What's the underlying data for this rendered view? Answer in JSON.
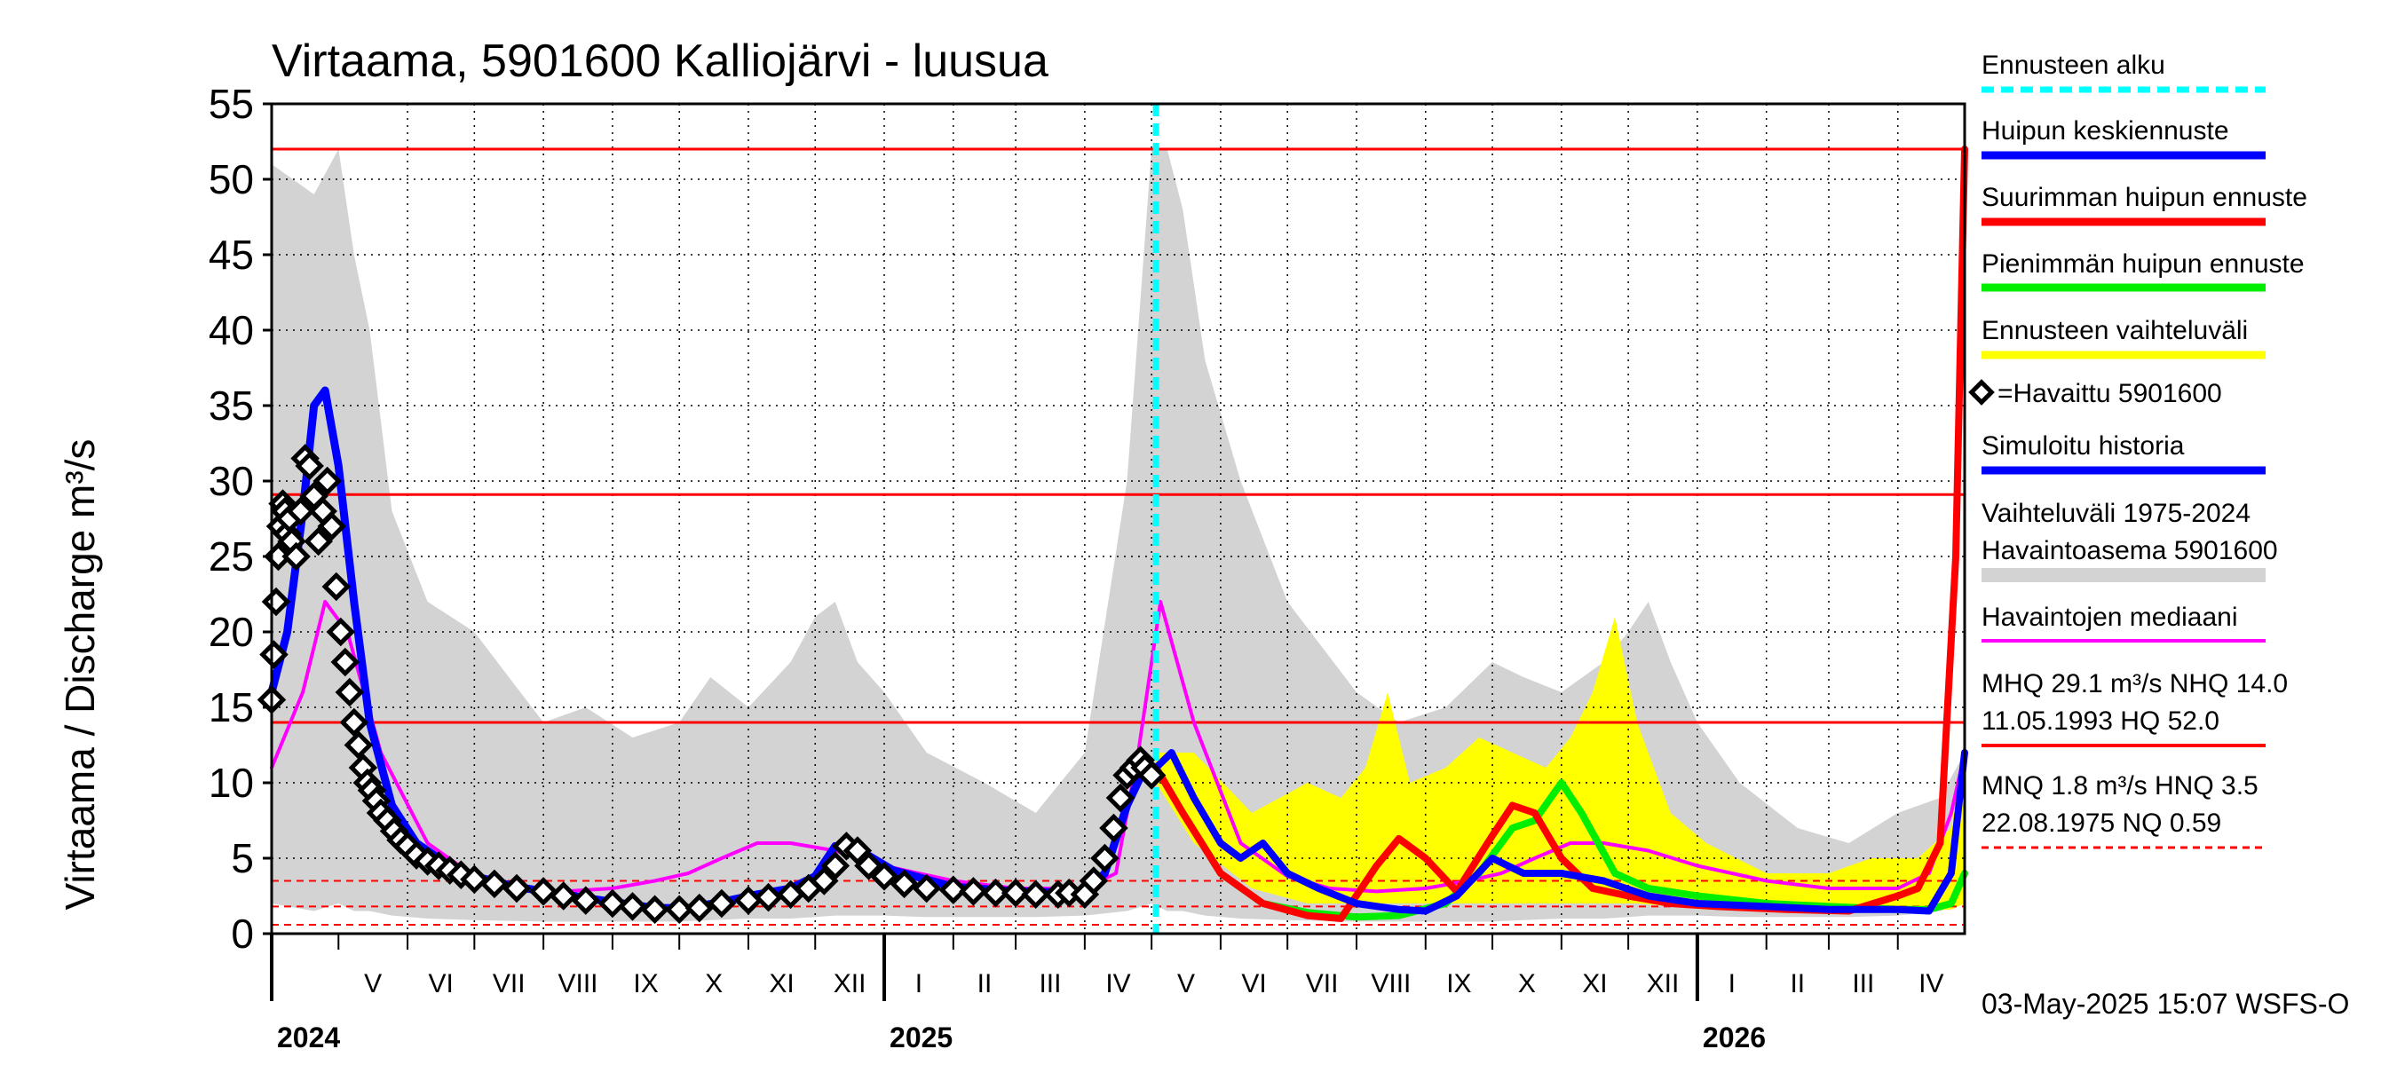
{
  "chart_data": {
    "type": "line",
    "title": "Virtaama, 5901600 Kalliojärvi - luusua",
    "ylabel": "Virtaama / Discharge     m³/s",
    "ylim": [
      0,
      55
    ],
    "yticks": [
      0,
      5,
      10,
      15,
      20,
      25,
      30,
      35,
      40,
      45,
      50,
      55
    ],
    "grid": true,
    "x_range": [
      "2024-04-01",
      "2026-05-01"
    ],
    "months": [
      {
        "label": "V",
        "start": "2024-05-01",
        "end": "2024-06-01"
      },
      {
        "label": "VI",
        "start": "2024-06-01",
        "end": "2024-07-01"
      },
      {
        "label": "VII",
        "start": "2024-07-01",
        "end": "2024-08-01"
      },
      {
        "label": "VIII",
        "start": "2024-08-01",
        "end": "2024-09-01"
      },
      {
        "label": "IX",
        "start": "2024-09-01",
        "end": "2024-10-01"
      },
      {
        "label": "X",
        "start": "2024-10-01",
        "end": "2024-11-01"
      },
      {
        "label": "XI",
        "start": "2024-11-01",
        "end": "2024-12-01"
      },
      {
        "label": "XII",
        "start": "2024-12-01",
        "end": "2025-01-01"
      },
      {
        "label": "I",
        "start": "2025-01-01",
        "end": "2025-02-01"
      },
      {
        "label": "II",
        "start": "2025-02-01",
        "end": "2025-03-01"
      },
      {
        "label": "III",
        "start": "2025-03-01",
        "end": "2025-04-01"
      },
      {
        "label": "IV",
        "start": "2025-04-01",
        "end": "2025-05-01"
      },
      {
        "label": "V",
        "start": "2025-05-01",
        "end": "2025-06-01"
      },
      {
        "label": "VI",
        "start": "2025-06-01",
        "end": "2025-07-01"
      },
      {
        "label": "VII",
        "start": "2025-07-01",
        "end": "2025-08-01"
      },
      {
        "label": "VIII",
        "start": "2025-08-01",
        "end": "2025-09-01"
      },
      {
        "label": "IX",
        "start": "2025-09-01",
        "end": "2025-10-01"
      },
      {
        "label": "X",
        "start": "2025-10-01",
        "end": "2025-11-01"
      },
      {
        "label": "XI",
        "start": "2025-11-01",
        "end": "2025-12-01"
      },
      {
        "label": "XII",
        "start": "2025-12-01",
        "end": "2026-01-01"
      },
      {
        "label": "I",
        "start": "2026-01-01",
        "end": "2026-02-01"
      },
      {
        "label": "II",
        "start": "2026-02-01",
        "end": "2026-03-01"
      },
      {
        "label": "III",
        "start": "2026-03-01",
        "end": "2026-04-01"
      },
      {
        "label": "IV",
        "start": "2026-04-01",
        "end": "2026-05-01"
      }
    ],
    "years": [
      {
        "label": "2024",
        "start": "2024-04-01"
      },
      {
        "label": "2025",
        "start": "2025-01-01"
      },
      {
        "label": "2026",
        "start": "2026-01-01"
      }
    ],
    "forecast_start": "2025-05-03",
    "reference_lines": [
      {
        "name": "HQ",
        "value": 52.0,
        "style": "solid"
      },
      {
        "name": "MHQ",
        "value": 29.1,
        "style": "solid"
      },
      {
        "name": "NHQ",
        "value": 14.0,
        "style": "solid"
      },
      {
        "name": "HNQ",
        "value": 3.5,
        "style": "dashed"
      },
      {
        "name": "MNQ",
        "value": 1.8,
        "style": "dashed"
      },
      {
        "name": "NQ",
        "value": 0.59,
        "style": "dashed"
      }
    ],
    "series": {
      "range_band": {
        "name": "Vaihteluväli 1975-2024 Havaintoasema 5901600",
        "color": "#d3d3d3",
        "x": [
          "2024-04-01",
          "2024-04-20",
          "2024-05-01",
          "2024-05-08",
          "2024-05-15",
          "2024-05-25",
          "2024-06-10",
          "2024-07-01",
          "2024-08-01",
          "2024-08-20",
          "2024-09-10",
          "2024-10-01",
          "2024-10-15",
          "2024-11-01",
          "2024-11-20",
          "2024-12-01",
          "2024-12-10",
          "2024-12-20",
          "2025-01-01",
          "2025-01-20",
          "2025-02-15",
          "2025-03-10",
          "2025-04-01",
          "2025-04-20",
          "2025-05-01",
          "2025-05-08",
          "2025-05-15",
          "2025-05-25",
          "2025-06-10",
          "2025-07-01",
          "2025-08-01",
          "2025-08-20",
          "2025-09-10",
          "2025-10-01",
          "2025-10-15",
          "2025-11-01",
          "2025-11-20",
          "2025-12-01",
          "2025-12-10",
          "2025-12-20",
          "2026-01-01",
          "2026-01-20",
          "2026-02-15",
          "2026-03-10",
          "2026-04-01",
          "2026-04-20",
          "2026-05-01"
        ],
        "upper": [
          51,
          49,
          52,
          45,
          40,
          28,
          22,
          20,
          14,
          15,
          13,
          14,
          17,
          15,
          18,
          21,
          22,
          18,
          16,
          12,
          10,
          8,
          12,
          30,
          52,
          52,
          48,
          38,
          30,
          22,
          16,
          14,
          15,
          18,
          17,
          16,
          18,
          20,
          22,
          18,
          14,
          10,
          7,
          6,
          8,
          9,
          12
        ],
        "lower": [
          2,
          1.5,
          2,
          1.5,
          1.5,
          1.2,
          1,
          0.9,
          0.8,
          0.8,
          0.8,
          0.8,
          0.9,
          1,
          1,
          1.1,
          1.2,
          1.2,
          1.2,
          1.1,
          1.1,
          1.1,
          1.2,
          1.5,
          2,
          1.5,
          1.5,
          1.2,
          1,
          0.9,
          0.8,
          0.8,
          0.8,
          0.8,
          0.9,
          1,
          1,
          1.1,
          1.2,
          1.2,
          1.2,
          1.1,
          1.1,
          1.1,
          1.2,
          1.5,
          2
        ]
      },
      "forecast_band": {
        "name": "Ennusteen vaihteluväli",
        "color": "#ffff00",
        "x": [
          "2025-05-03",
          "2025-05-20",
          "2025-06-15",
          "2025-07-10",
          "2025-07-25",
          "2025-08-05",
          "2025-08-15",
          "2025-08-25",
          "2025-09-10",
          "2025-09-25",
          "2025-10-10",
          "2025-10-25",
          "2025-11-05",
          "2025-11-15",
          "2025-11-25",
          "2025-12-05",
          "2025-12-20",
          "2026-01-05",
          "2026-02-01",
          "2026-03-01",
          "2026-03-20",
          "2026-04-10",
          "2026-04-25",
          "2026-05-01"
        ],
        "upper": [
          12,
          12,
          8,
          10,
          9,
          11,
          16,
          10,
          11,
          13,
          12,
          11,
          13,
          16,
          21,
          14,
          8,
          6,
          4,
          4,
          5,
          5,
          7,
          13
        ],
        "lower": [
          10,
          6,
          3,
          2,
          2,
          2,
          2,
          2,
          2,
          2,
          2,
          2,
          2,
          2,
          2,
          2,
          1.8,
          1.6,
          1.5,
          1.5,
          1.5,
          1.5,
          1.6,
          2
        ]
      },
      "median": {
        "name": "Havaintojen mediaani",
        "color": "#ff00ff",
        "x": [
          "2024-04-01",
          "2024-04-15",
          "2024-04-25",
          "2024-05-05",
          "2024-05-20",
          "2024-06-10",
          "2024-07-01",
          "2024-07-20",
          "2024-08-10",
          "2024-09-01",
          "2024-09-20",
          "2024-10-05",
          "2024-10-20",
          "2024-11-05",
          "2024-11-20",
          "2024-12-10",
          "2025-01-01",
          "2025-02-01",
          "2025-03-01",
          "2025-04-01",
          "2025-04-15",
          "2025-04-25",
          "2025-05-05",
          "2025-05-20",
          "2025-06-10",
          "2025-07-01",
          "2025-07-20",
          "2025-08-10",
          "2025-09-01",
          "2025-09-20",
          "2025-10-05",
          "2025-10-20",
          "2025-11-05",
          "2025-11-20",
          "2025-12-10",
          "2026-01-01",
          "2026-02-01",
          "2026-03-01",
          "2026-04-01",
          "2026-04-15",
          "2026-04-25",
          "2026-05-01"
        ],
        "values": [
          11,
          16,
          22,
          20,
          12,
          6,
          3.8,
          3,
          2.8,
          3,
          3.5,
          4,
          5,
          6,
          6,
          5.5,
          4.5,
          3.5,
          3,
          3,
          4,
          12,
          22,
          14,
          6,
          3.8,
          3,
          2.8,
          3,
          3.5,
          4,
          5,
          6,
          6,
          5.5,
          4.5,
          3.5,
          3,
          3,
          4,
          8,
          12
        ]
      },
      "observed": {
        "name": "=Havaittu 5901600",
        "color": "#000000",
        "x": [
          "2024-04-01",
          "2024-04-02",
          "2024-04-03",
          "2024-04-04",
          "2024-04-05",
          "2024-04-06",
          "2024-04-07",
          "2024-04-08",
          "2024-04-09",
          "2024-04-10",
          "2024-04-12",
          "2024-04-14",
          "2024-04-16",
          "2024-04-18",
          "2024-04-20",
          "2024-04-22",
          "2024-04-24",
          "2024-04-26",
          "2024-04-28",
          "2024-04-30",
          "2024-05-02",
          "2024-05-04",
          "2024-05-06",
          "2024-05-08",
          "2024-05-10",
          "2024-05-12",
          "2024-05-14",
          "2024-05-16",
          "2024-05-18",
          "2024-05-20",
          "2024-05-23",
          "2024-05-26",
          "2024-05-29",
          "2024-06-01",
          "2024-06-05",
          "2024-06-10",
          "2024-06-15",
          "2024-06-20",
          "2024-06-25",
          "2024-07-01",
          "2024-07-10",
          "2024-07-20",
          "2024-08-01",
          "2024-08-10",
          "2024-08-20",
          "2024-09-01",
          "2024-09-10",
          "2024-09-20",
          "2024-10-01",
          "2024-10-10",
          "2024-10-20",
          "2024-11-01",
          "2024-11-10",
          "2024-11-20",
          "2024-11-28",
          "2024-12-05",
          "2024-12-10",
          "2024-12-15",
          "2024-12-20",
          "2024-12-25",
          "2025-01-01",
          "2025-01-10",
          "2025-01-20",
          "2025-02-01",
          "2025-02-10",
          "2025-02-20",
          "2025-03-01",
          "2025-03-10",
          "2025-03-20",
          "2025-03-25",
          "2025-04-01",
          "2025-04-05",
          "2025-04-10",
          "2025-04-14",
          "2025-04-17",
          "2025-04-20",
          "2025-04-23",
          "2025-04-26",
          "2025-04-28",
          "2025-05-01"
        ],
        "values": [
          15.5,
          18.5,
          22,
          25,
          27,
          28.5,
          28,
          26.5,
          27.5,
          26,
          25,
          28,
          31.5,
          31,
          29,
          26,
          28,
          30,
          27,
          23,
          20,
          18,
          16,
          14,
          12.5,
          11,
          10,
          9.5,
          8.8,
          8,
          7.5,
          6.8,
          6.2,
          5.8,
          5.2,
          4.8,
          4.5,
          4.2,
          3.9,
          3.6,
          3.3,
          3,
          2.8,
          2.5,
          2.2,
          2,
          1.8,
          1.6,
          1.6,
          1.7,
          2,
          2.2,
          2.4,
          2.6,
          3,
          3.5,
          4.5,
          5.8,
          5.5,
          4.5,
          3.8,
          3.3,
          3,
          2.9,
          2.8,
          2.7,
          2.7,
          2.6,
          2.6,
          2.7,
          2.6,
          3.5,
          5,
          7,
          9,
          10.5,
          11,
          11.5,
          11,
          10.5
        ]
      },
      "simulated": {
        "name": "Simuloitu historia",
        "color": "#0000ff",
        "x": [
          "2024-04-01",
          "2024-04-08",
          "2024-04-15",
          "2024-04-20",
          "2024-04-25",
          "2024-05-01",
          "2024-05-08",
          "2024-05-15",
          "2024-05-25",
          "2024-06-05",
          "2024-06-20",
          "2024-07-01",
          "2024-07-20",
          "2024-08-10",
          "2024-09-01",
          "2024-09-20",
          "2024-10-05",
          "2024-10-20",
          "2024-11-05",
          "2024-11-20",
          "2024-12-01",
          "2024-12-10",
          "2024-12-20",
          "2025-01-05",
          "2025-02-01",
          "2025-03-01",
          "2025-04-01",
          "2025-04-10",
          "2025-04-20",
          "2025-04-28",
          "2025-05-03"
        ],
        "values": [
          16,
          20,
          28,
          35,
          36,
          31,
          22,
          14,
          8.5,
          6,
          4.5,
          3.8,
          3.1,
          2.6,
          2.1,
          1.7,
          1.7,
          2.1,
          2.6,
          3,
          3.8,
          5.8,
          5.6,
          4.2,
          3.1,
          2.8,
          2.7,
          4,
          8.5,
          11,
          11
        ]
      },
      "forecast_mean": {
        "name": "Huipun keskiennuste",
        "color": "#0000ff",
        "x": [
          "2025-05-03",
          "2025-05-10",
          "2025-05-20",
          "2025-06-01",
          "2025-06-10",
          "2025-06-20",
          "2025-07-01",
          "2025-07-15",
          "2025-08-01",
          "2025-08-20",
          "2025-09-01",
          "2025-09-15",
          "2025-10-01",
          "2025-10-15",
          "2025-11-01",
          "2025-11-20",
          "2025-12-10",
          "2026-01-01",
          "2026-02-01",
          "2026-03-01",
          "2026-04-01",
          "2026-04-15",
          "2026-04-25",
          "2026-05-01"
        ],
        "values": [
          11,
          12,
          9,
          6,
          5,
          6,
          4,
          3,
          2,
          1.6,
          1.5,
          2.5,
          5,
          4,
          4,
          3.5,
          2.5,
          2,
          1.8,
          1.6,
          1.6,
          1.5,
          4,
          12
        ]
      },
      "forecast_max": {
        "name": "Suurimman huipun ennuste",
        "color": "#ff0000",
        "x": [
          "2025-05-03",
          "2025-05-15",
          "2025-06-01",
          "2025-06-20",
          "2025-07-10",
          "2025-07-25",
          "2025-08-10",
          "2025-08-20",
          "2025-09-01",
          "2025-09-15",
          "2025-10-01",
          "2025-10-10",
          "2025-10-20",
          "2025-11-01",
          "2025-11-15",
          "2025-12-01",
          "2025-12-20",
          "2026-01-10",
          "2026-02-10",
          "2026-03-10",
          "2026-04-01",
          "2026-04-10",
          "2026-04-20",
          "2026-04-27",
          "2026-05-01"
        ],
        "values": [
          11,
          8,
          4,
          2,
          1.2,
          1,
          4.5,
          6.3,
          5,
          2.8,
          6.5,
          8.5,
          8,
          5,
          3,
          2.5,
          2,
          1.8,
          1.6,
          1.5,
          2.5,
          3,
          6,
          25,
          52
        ]
      },
      "forecast_min": {
        "name": "Pienimmän huipun ennuste",
        "color": "#00ee00",
        "x": [
          "2025-05-03",
          "2025-05-15",
          "2025-06-01",
          "2025-06-20",
          "2025-07-10",
          "2025-08-01",
          "2025-08-20",
          "2025-09-10",
          "2025-09-25",
          "2025-10-10",
          "2025-10-20",
          "2025-11-01",
          "2025-11-10",
          "2025-11-25",
          "2025-12-10",
          "2026-01-01",
          "2026-02-01",
          "2026-03-01",
          "2026-04-01",
          "2026-04-15",
          "2026-04-25",
          "2026-05-01"
        ],
        "values": [
          11,
          8,
          4,
          2,
          1.4,
          1.1,
          1.2,
          2,
          4,
          7,
          7.5,
          10,
          8,
          4,
          3,
          2.5,
          2,
          1.8,
          1.6,
          1.6,
          2,
          4
        ]
      }
    }
  },
  "legend": {
    "forecast_start": "Ennusteen alku",
    "mean_forecast": "Huipun keskiennuste",
    "max_forecast": "Suurimman huipun ennuste",
    "min_forecast": "Pienimmän huipun ennuste",
    "forecast_range": "Ennusteen vaihteluväli",
    "observed": "=Havaittu 5901600",
    "simulated": "Simuloitu historia",
    "range_line1": "Vaihteluväli 1975-2024",
    "range_line2": " Havaintoasema 5901600",
    "median": "Havaintojen mediaani",
    "stats_line1": "MHQ 29.1 m³/s NHQ 14.0",
    "stats_line2": "11.05.1993 HQ 52.0",
    "stats_line3": "MNQ  1.8 m³/s HNQ  3.5",
    "stats_line4": "22.08.1975 NQ 0.59"
  },
  "footer": "03-May-2025 15:07 WSFS-O",
  "colors": {
    "forecast_start": "#00ffff",
    "ref_lines": "#ff0000",
    "grid": "#000000",
    "range_band": "#d3d3d3",
    "forecast_band": "#ffff00"
  }
}
